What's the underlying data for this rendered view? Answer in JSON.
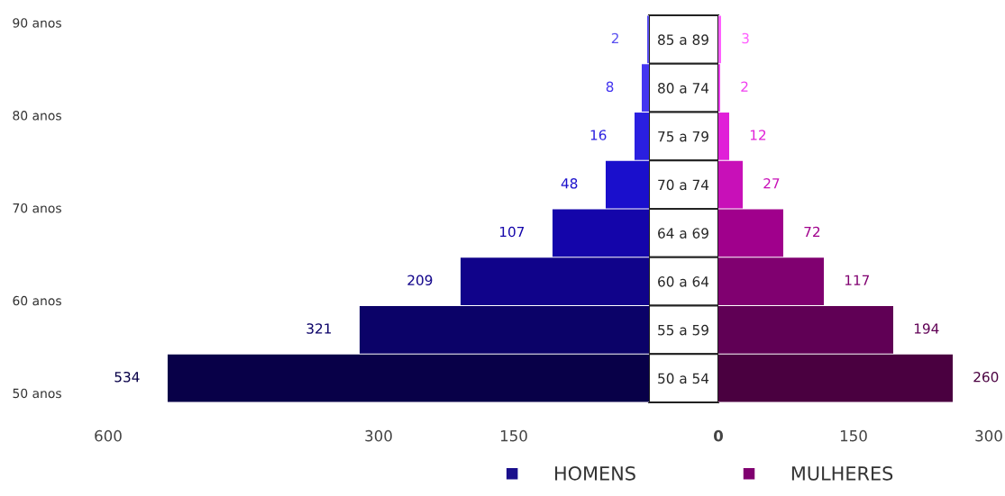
{
  "chart_data": [
    {
      "type": "bar",
      "orientation": "horizontal",
      "categories": [
        "85 a 89",
        "80 a 74",
        "75 a 79",
        "70 a 74",
        "64 a 69",
        "60 a 64",
        "55 a 59",
        "50 a 54"
      ],
      "series": [
        {
          "name": "HOMENS",
          "color": "#1a0f8c",
          "colors": [
            "#5a50f0",
            "#4536f0",
            "#2a1fe0",
            "#1a0fcc",
            "#1405aa",
            "#10038a",
            "#0b0268",
            "#080048"
          ],
          "values": [
            2,
            8,
            16,
            48,
            107,
            209,
            321,
            534
          ]
        }
      ],
      "xlim": [
        600,
        0
      ],
      "xticks": [
        600,
        300,
        150
      ],
      "y2lim": [
        49,
        90.8
      ],
      "y2ticks": [
        {
          "value": 50,
          "label": "50 anos"
        },
        {
          "value": 60,
          "label": "60 anos"
        },
        {
          "value": 70,
          "label": "70 anos"
        },
        {
          "value": 80,
          "label": "80 anos"
        },
        {
          "value": 90,
          "label": "90 anos"
        }
      ],
      "data_labels": true,
      "grid": false,
      "legend": "bottom"
    },
    {
      "type": "bar",
      "orientation": "horizontal",
      "categories": [
        null,
        null,
        null,
        null,
        null,
        null,
        null,
        null
      ],
      "series": [
        {
          "name": "MULHERES",
          "color": "#800070",
          "colors": [
            "#ff60ff",
            "#f040f0",
            "#e020d8",
            "#c810b8",
            "#a0008c",
            "#800070",
            "#600055",
            "#4a0040"
          ],
          "values": [
            3,
            2,
            12,
            27,
            72,
            117,
            194,
            260
          ]
        }
      ],
      "xlim": [
        0,
        300
      ],
      "xticks": [
        0,
        150,
        300
      ],
      "tick_labels": "x",
      "data_labels": true,
      "grid": false,
      "legend": "bottom"
    }
  ]
}
